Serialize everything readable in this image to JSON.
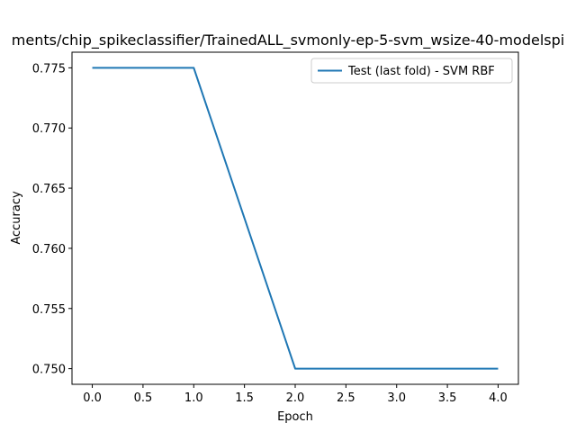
{
  "chart_data": {
    "type": "line",
    "title": "ments/chip_spikeclassifier/TrainedALL_svmonly-ep-5-svm_wsize-40-modelspi",
    "xlabel": "Epoch",
    "ylabel": "Accuracy",
    "xlim": [
      -0.2,
      4.2
    ],
    "ylim": [
      0.7487,
      0.7763
    ],
    "x_ticks": [
      0.0,
      0.5,
      1.0,
      1.5,
      2.0,
      2.5,
      3.0,
      3.5,
      4.0
    ],
    "x_tick_labels": [
      "0.0",
      "0.5",
      "1.0",
      "1.5",
      "2.0",
      "2.5",
      "3.0",
      "3.5",
      "4.0"
    ],
    "y_ticks": [
      0.75,
      0.755,
      0.76,
      0.765,
      0.77,
      0.775
    ],
    "y_tick_labels": [
      "0.750",
      "0.755",
      "0.760",
      "0.765",
      "0.770",
      "0.775"
    ],
    "grid": false,
    "legend_position": "upper-right",
    "series": [
      {
        "name": "Test (last fold) - SVM RBF",
        "color": "#1f77b4",
        "x": [
          0,
          1,
          2,
          3,
          4
        ],
        "y": [
          0.775,
          0.775,
          0.75,
          0.75,
          0.75
        ]
      }
    ]
  }
}
